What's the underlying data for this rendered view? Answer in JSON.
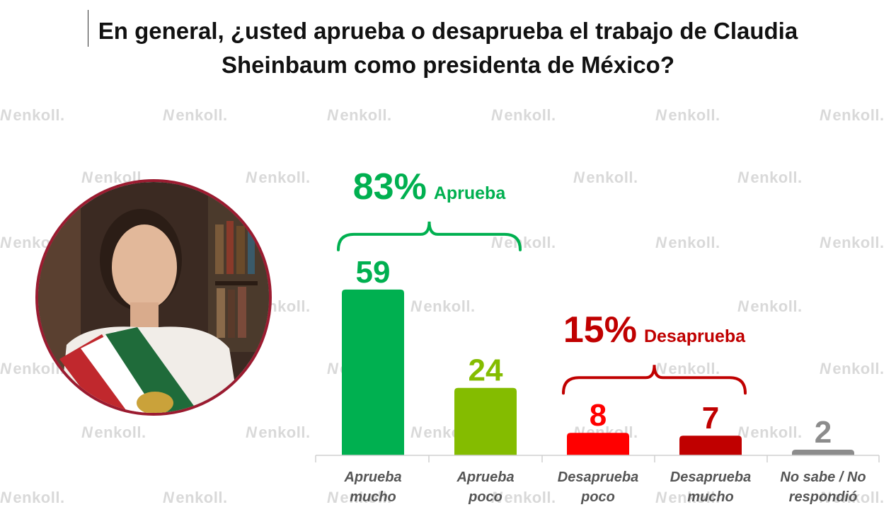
{
  "title": {
    "line1": "En general, ¿usted aprueba o desaprueba el trabajo de Claudia",
    "line2": "Sheinbaum como presidenta de México?"
  },
  "watermark": {
    "text": "enkoll."
  },
  "colors": {
    "aprueba_mucho": "#00b050",
    "aprueba_poco": "#84bc00",
    "desaprueba_poco": "#ff0000",
    "desaprueba_mucho": "#c00000",
    "no_sabe": "#8c8c8c",
    "approve_group": "#00b050",
    "disapprove_group": "#c00000",
    "portrait_border": "#9b1b30"
  },
  "chart_data": {
    "type": "bar",
    "categories": [
      [
        "Aprueba",
        "mucho"
      ],
      [
        "Aprueba",
        "poco"
      ],
      [
        "Desaprueba",
        "poco"
      ],
      [
        "Desaprueba",
        "mucho"
      ],
      [
        "No sabe / No",
        "respondió"
      ]
    ],
    "values": [
      59,
      24,
      8,
      7,
      2
    ],
    "value_labels": [
      "59",
      "24",
      "8",
      "7",
      "2"
    ],
    "ylim": [
      0,
      70
    ],
    "grid": false,
    "groups": [
      {
        "pct": "83%",
        "label": "Aprueba",
        "categories": [
          0,
          1
        ]
      },
      {
        "pct": "15%",
        "label": "Desaprueba",
        "categories": [
          2,
          3
        ]
      }
    ]
  }
}
